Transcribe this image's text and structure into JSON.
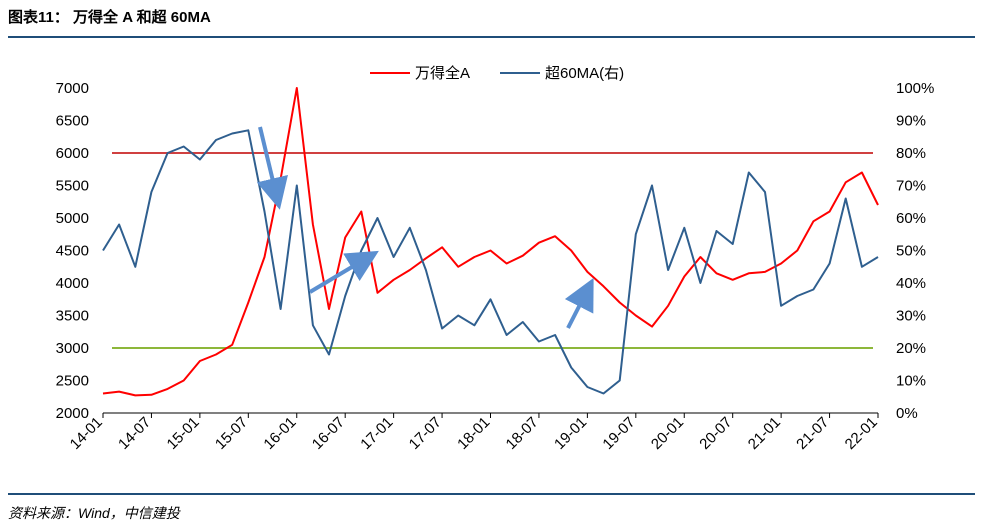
{
  "header": {
    "title": "图表11： 万得全 A 和超 60MA"
  },
  "footer": {
    "source": "资料来源：Wind，中信建投"
  },
  "colors": {
    "wind_a": "#ff0000",
    "above_60ma": "#2f5f8f",
    "upper_ref": "#d04040",
    "lower_ref": "#8db73a",
    "arrow": "#5b8fd0",
    "rule": "#1f4e79"
  },
  "chart_data": {
    "type": "line",
    "legend_position": "top-center",
    "legend": [
      "万得全A",
      "超60MA(右)"
    ],
    "x_tick_labels": [
      "14-01",
      "14-07",
      "15-01",
      "15-07",
      "16-01",
      "16-07",
      "17-01",
      "17-07",
      "18-01",
      "18-07",
      "19-01",
      "19-07",
      "20-01",
      "20-07",
      "21-01",
      "21-07",
      "22-01"
    ],
    "y_left": {
      "range": [
        2000,
        7000
      ],
      "ticks": [
        "7000",
        "6500",
        "6000",
        "5500",
        "5000",
        "4500",
        "4000",
        "3500",
        "3000",
        "2500",
        "2000"
      ]
    },
    "y_right": {
      "range": [
        0,
        100
      ],
      "ticks": [
        "100%",
        "90%",
        "80%",
        "70%",
        "60%",
        "50%",
        "40%",
        "30%",
        "20%",
        "10%",
        "0%"
      ]
    },
    "reference_lines": [
      {
        "axis": "right",
        "value": 80,
        "color": "#d04040"
      },
      {
        "axis": "right",
        "value": 20,
        "color": "#8db73a"
      }
    ],
    "series": [
      {
        "name": "万得全A",
        "axis": "left",
        "color": "#ff0000",
        "x": [
          0,
          1,
          2,
          3,
          4,
          5,
          6,
          7,
          8,
          9,
          10,
          11,
          12,
          13,
          14,
          15,
          16,
          17,
          18,
          19,
          20,
          21,
          22,
          23,
          24,
          25,
          26,
          27,
          28,
          29,
          30,
          31,
          32,
          33,
          34,
          35,
          36,
          37,
          38,
          39,
          40,
          41,
          42,
          43,
          44,
          45,
          46,
          47,
          48
        ],
        "values": [
          2300,
          2330,
          2270,
          2280,
          2370,
          2500,
          2800,
          2900,
          3050,
          3700,
          4400,
          5600,
          7000,
          4900,
          3600,
          4700,
          5100,
          3850,
          4050,
          4200,
          4380,
          4550,
          4250,
          4400,
          4500,
          4300,
          4420,
          4620,
          4720,
          4500,
          4170,
          3950,
          3700,
          3500,
          3330,
          3650,
          4100,
          4400,
          4150,
          4050,
          4150,
          4170,
          4300,
          4500,
          4950,
          5100,
          5550,
          5700,
          5200
        ],
        "note": "index values approximated per month step"
      },
      {
        "name": "超60MA(右)",
        "axis": "right",
        "color": "#2f5f8f",
        "x": [
          0,
          1,
          2,
          3,
          4,
          5,
          6,
          7,
          8,
          9,
          10,
          11,
          12,
          13,
          14,
          15,
          16,
          17,
          18,
          19,
          20,
          21,
          22,
          23,
          24,
          25,
          26,
          27,
          28,
          29,
          30,
          31,
          32,
          33,
          34,
          35,
          36,
          37,
          38,
          39,
          40,
          41,
          42,
          43,
          44,
          45,
          46,
          47,
          48
        ],
        "values": [
          50,
          58,
          45,
          68,
          80,
          82,
          78,
          84,
          86,
          87,
          62,
          32,
          70,
          27,
          18,
          36,
          50,
          60,
          48,
          57,
          44,
          26,
          30,
          27,
          35,
          24,
          28,
          22,
          24,
          14,
          8,
          6,
          10,
          55,
          70,
          44,
          57,
          40,
          56,
          52,
          74,
          68,
          33,
          36,
          38,
          46,
          66,
          45,
          48
        ]
      }
    ]
  }
}
